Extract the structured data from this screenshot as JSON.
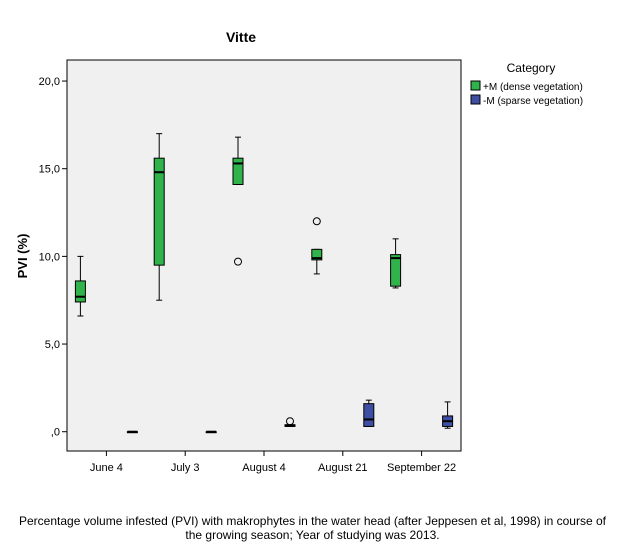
{
  "caption": "Percentage volume infested (PVI) with makrophytes in the water head (after Jeppesen et al, 1998) in course of the growing season; Year of studying was 2013.",
  "chart_data": {
    "type": "boxplot",
    "title": "Vitte",
    "xlabel": "",
    "ylabel": "PVI (%)",
    "ylim": [
      -1.1,
      21.2
    ],
    "yticks": [
      0,
      5,
      10,
      15,
      20
    ],
    "ytick_labels": [
      ",0",
      "5,0",
      "10,0",
      "15,0",
      "20,0"
    ],
    "categories": [
      "June 4",
      "July 3",
      "August 4",
      "August 21",
      "September 22"
    ],
    "legend": {
      "title": "Category",
      "position": "top-right",
      "entries": [
        "+M (dense vegetation)",
        "-M (sparse vegetation)"
      ]
    },
    "series": [
      {
        "name": "+M (dense vegetation)",
        "color": "#2fb34a",
        "boxes": [
          {
            "min": 6.6,
            "q1": 7.4,
            "median": 7.7,
            "q3": 8.6,
            "max": 10.0,
            "outliers": []
          },
          {
            "min": 7.5,
            "q1": 9.5,
            "median": 14.8,
            "q3": 15.6,
            "max": 17.0,
            "outliers": []
          },
          {
            "min": 14.1,
            "q1": 14.1,
            "median": 15.3,
            "q3": 15.6,
            "max": 16.8,
            "outliers": [
              9.7
            ]
          },
          {
            "min": 9.0,
            "q1": 9.8,
            "median": 9.9,
            "q3": 10.4,
            "max": 10.4,
            "outliers": [
              12.0
            ]
          },
          {
            "min": 8.2,
            "q1": 8.3,
            "median": 9.9,
            "q3": 10.1,
            "max": 11.0,
            "outliers": []
          }
        ]
      },
      {
        "name": "-M (sparse vegetation)",
        "color": "#3e4fa3",
        "boxes": [
          {
            "min": 0.0,
            "q1": 0.0,
            "median": 0.0,
            "q3": 0.0,
            "max": 0.0,
            "outliers": []
          },
          {
            "min": 0.0,
            "q1": 0.0,
            "median": 0.0,
            "q3": 0.0,
            "max": 0.0,
            "outliers": []
          },
          {
            "min": 0.3,
            "q1": 0.3,
            "median": 0.35,
            "q3": 0.4,
            "max": 0.4,
            "outliers": [
              0.6
            ]
          },
          {
            "min": 0.3,
            "q1": 0.3,
            "median": 0.7,
            "q3": 1.6,
            "max": 1.8,
            "outliers": []
          },
          {
            "min": 0.2,
            "q1": 0.3,
            "median": 0.6,
            "q3": 0.9,
            "max": 1.7,
            "outliers": []
          }
        ]
      }
    ]
  }
}
